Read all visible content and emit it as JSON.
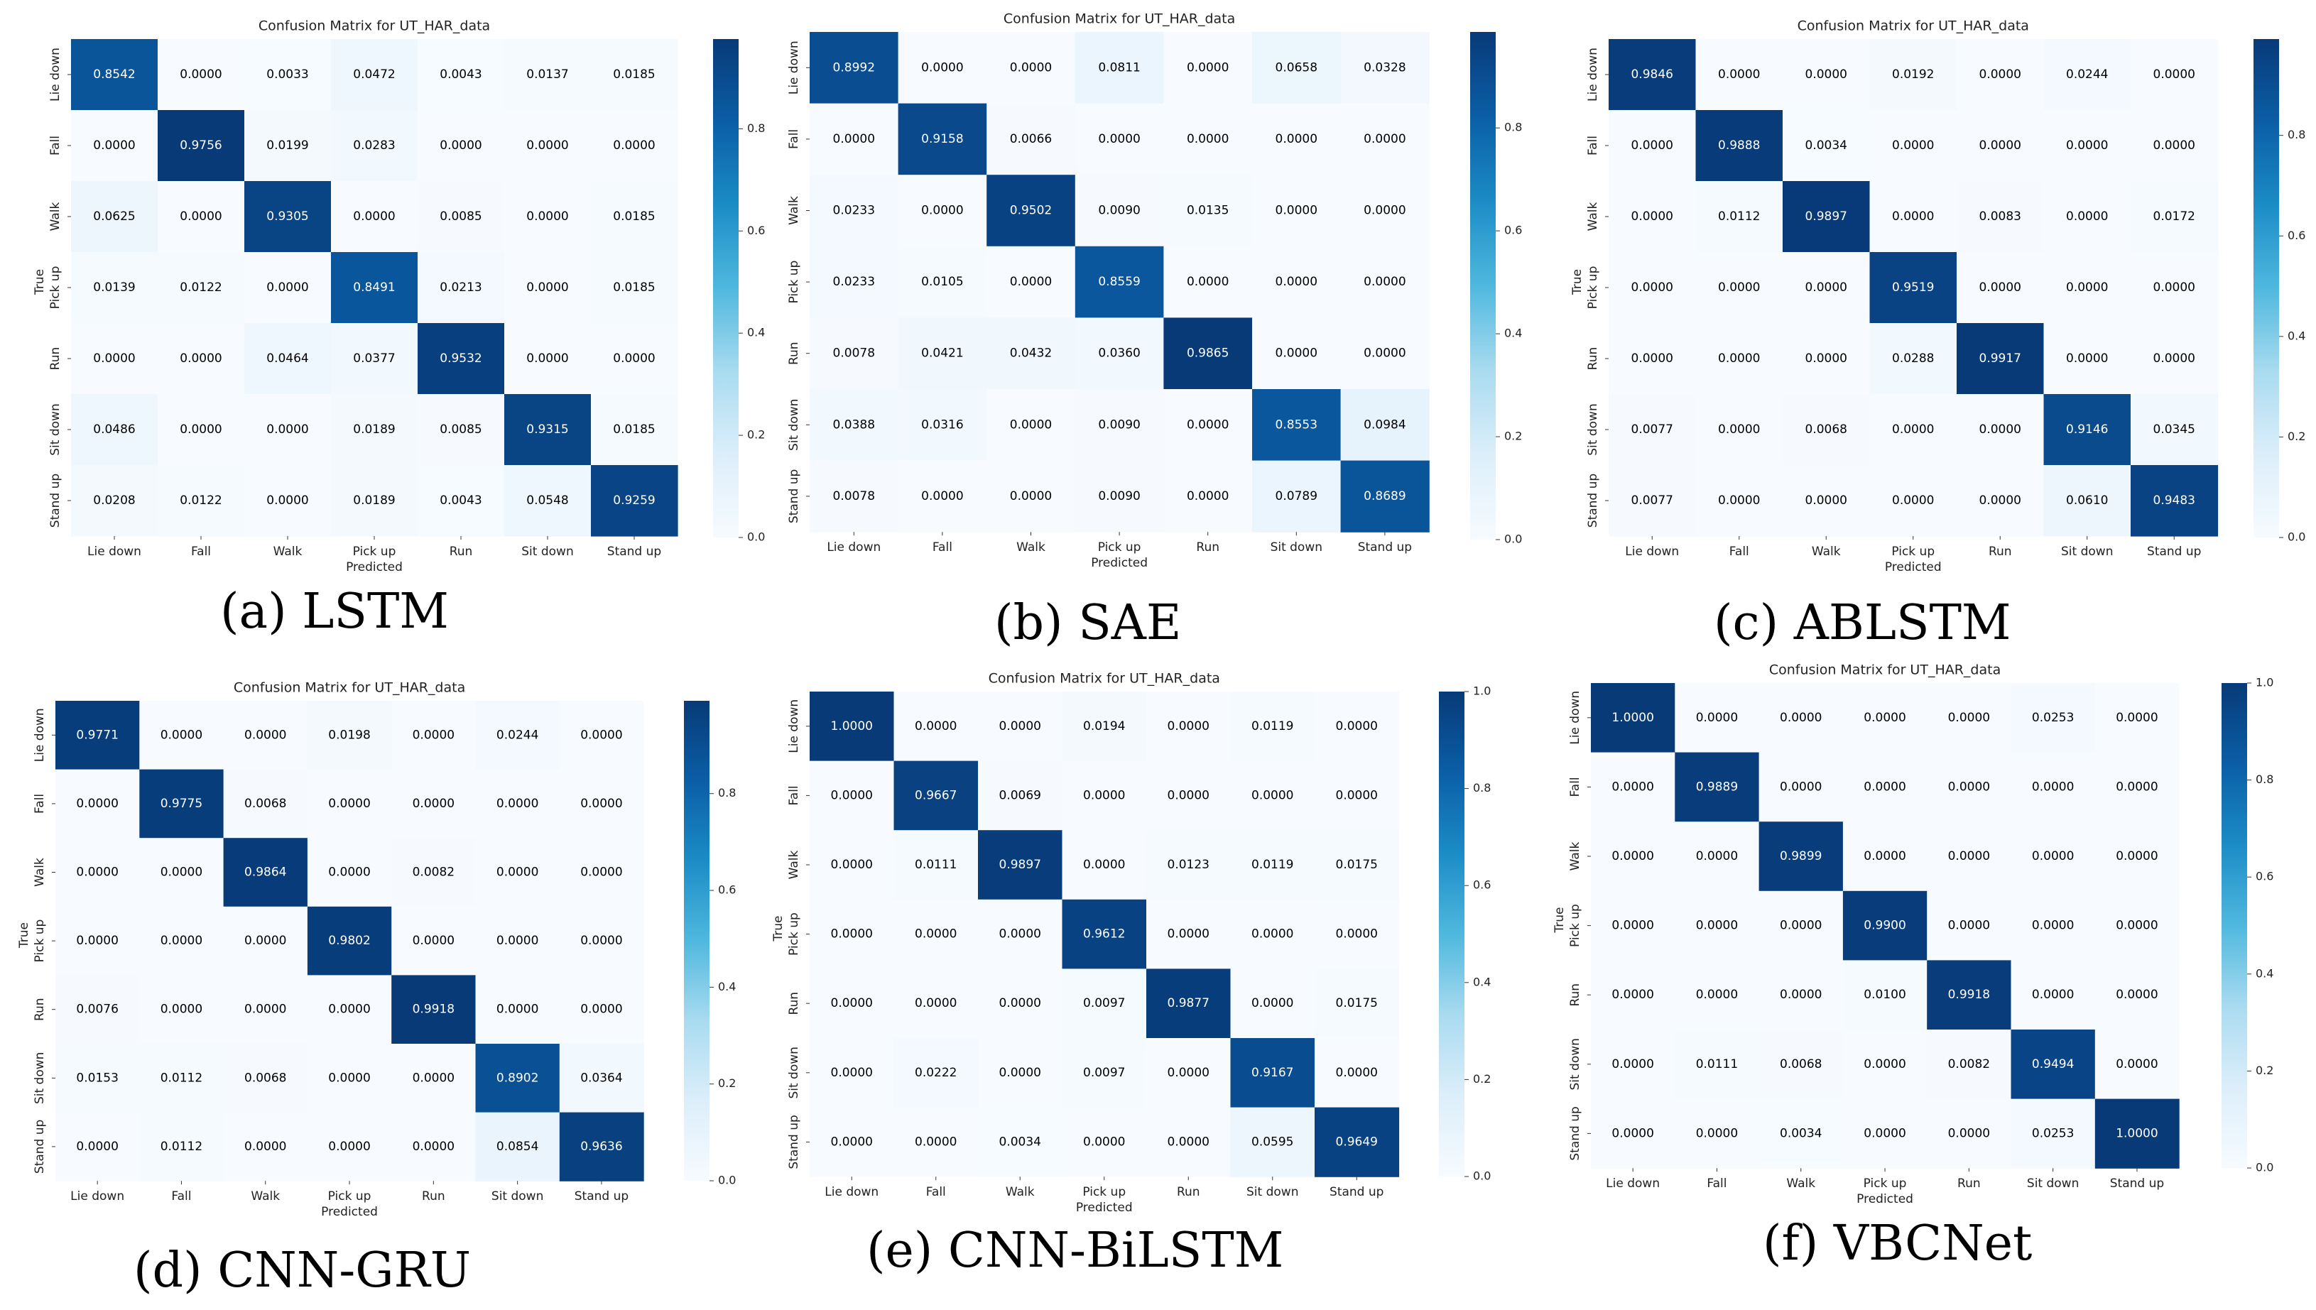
{
  "figure": {
    "panels": [
      {
        "caption": "(a) LSTM"
      },
      {
        "caption": "(b) SAE"
      },
      {
        "caption": "(c) ABLSTM"
      },
      {
        "caption": "(d) CNN-GRU"
      },
      {
        "caption": "(e) CNN-BiLSTM"
      },
      {
        "caption": "(f) VBCNet"
      }
    ]
  },
  "colormap": {
    "low": "#f7fbff",
    "stops": [
      "#f7fbff",
      "#dceefa",
      "#a9dbf0",
      "#4fb8de",
      "#1b8cc6",
      "#0b5ea6",
      "#083a78"
    ],
    "text_dark": "#000000",
    "text_light": "#ffffff"
  },
  "chart_data": [
    {
      "type": "heatmap",
      "title": "Confusion Matrix for UT_HAR_data",
      "xlabel": "Predicted",
      "ylabel": "True",
      "x_categories": [
        "Lie down",
        "Fall",
        "Walk",
        "Pick up",
        "Run",
        "Sit down",
        "Stand up"
      ],
      "y_categories": [
        "Lie down",
        "Fall",
        "Walk",
        "Pick up",
        "Run",
        "Sit down",
        "Stand up"
      ],
      "colorbar_ticks": [
        "0.0",
        "0.2",
        "0.4",
        "0.6",
        "0.8"
      ],
      "vmax": 0.9756,
      "values": [
        [
          "0.8542",
          "0.0000",
          "0.0033",
          "0.0472",
          "0.0043",
          "0.0137",
          "0.0185"
        ],
        [
          "0.0000",
          "0.9756",
          "0.0199",
          "0.0283",
          "0.0000",
          "0.0000",
          "0.0000"
        ],
        [
          "0.0625",
          "0.0000",
          "0.9305",
          "0.0000",
          "0.0085",
          "0.0000",
          "0.0185"
        ],
        [
          "0.0139",
          "0.0122",
          "0.0000",
          "0.8491",
          "0.0213",
          "0.0000",
          "0.0185"
        ],
        [
          "0.0000",
          "0.0000",
          "0.0464",
          "0.0377",
          "0.9532",
          "0.0000",
          "0.0000"
        ],
        [
          "0.0486",
          "0.0000",
          "0.0000",
          "0.0189",
          "0.0085",
          "0.9315",
          "0.0185"
        ],
        [
          "0.0208",
          "0.0122",
          "0.0000",
          "0.0189",
          "0.0043",
          "0.0548",
          "0.9259"
        ]
      ]
    },
    {
      "type": "heatmap",
      "title": "Confusion Matrix for UT_HAR_data",
      "xlabel": "Predicted",
      "ylabel": "",
      "x_categories": [
        "Lie down",
        "Fall",
        "Walk",
        "Pick up",
        "Run",
        "Sit down",
        "Stand up"
      ],
      "y_categories": [
        "Lie down",
        "Fall",
        "Walk",
        "Pick up",
        "Run",
        "Sit down",
        "Stand up"
      ],
      "colorbar_ticks": [
        "0.0",
        "0.2",
        "0.4",
        "0.6",
        "0.8"
      ],
      "vmax": 0.9865,
      "values": [
        [
          "0.8992",
          "0.0000",
          "0.0000",
          "0.0811",
          "0.0000",
          "0.0658",
          "0.0328"
        ],
        [
          "0.0000",
          "0.9158",
          "0.0066",
          "0.0000",
          "0.0000",
          "0.0000",
          "0.0000"
        ],
        [
          "0.0233",
          "0.0000",
          "0.9502",
          "0.0090",
          "0.0135",
          "0.0000",
          "0.0000"
        ],
        [
          "0.0233",
          "0.0105",
          "0.0000",
          "0.8559",
          "0.0000",
          "0.0000",
          "0.0000"
        ],
        [
          "0.0078",
          "0.0421",
          "0.0432",
          "0.0360",
          "0.9865",
          "0.0000",
          "0.0000"
        ],
        [
          "0.0388",
          "0.0316",
          "0.0000",
          "0.0090",
          "0.0000",
          "0.8553",
          "0.0984"
        ],
        [
          "0.0078",
          "0.0000",
          "0.0000",
          "0.0090",
          "0.0000",
          "0.0789",
          "0.8689"
        ]
      ]
    },
    {
      "type": "heatmap",
      "title": "Confusion Matrix for UT_HAR_data",
      "xlabel": "Predicted",
      "ylabel": "True",
      "x_categories": [
        "Lie down",
        "Fall",
        "Walk",
        "Pick up",
        "Run",
        "Sit down",
        "Stand up"
      ],
      "y_categories": [
        "Lie down",
        "Fall",
        "Walk",
        "Pick up",
        "Run",
        "Sit down",
        "Stand up"
      ],
      "colorbar_ticks": [
        "0.0",
        "0.2",
        "0.4",
        "0.6",
        "0.8"
      ],
      "vmax": 0.9917,
      "values": [
        [
          "0.9846",
          "0.0000",
          "0.0000",
          "0.0192",
          "0.0000",
          "0.0244",
          "0.0000"
        ],
        [
          "0.0000",
          "0.9888",
          "0.0034",
          "0.0000",
          "0.0000",
          "0.0000",
          "0.0000"
        ],
        [
          "0.0000",
          "0.0112",
          "0.9897",
          "0.0000",
          "0.0083",
          "0.0000",
          "0.0172"
        ],
        [
          "0.0000",
          "0.0000",
          "0.0000",
          "0.9519",
          "0.0000",
          "0.0000",
          "0.0000"
        ],
        [
          "0.0000",
          "0.0000",
          "0.0000",
          "0.0288",
          "0.9917",
          "0.0000",
          "0.0000"
        ],
        [
          "0.0077",
          "0.0000",
          "0.0068",
          "0.0000",
          "0.0000",
          "0.9146",
          "0.0345"
        ],
        [
          "0.0077",
          "0.0000",
          "0.0000",
          "0.0000",
          "0.0000",
          "0.0610",
          "0.9483"
        ]
      ]
    },
    {
      "type": "heatmap",
      "title": "Confusion Matrix for UT_HAR_data",
      "xlabel": "Predicted",
      "ylabel": "True",
      "x_categories": [
        "Lie down",
        "Fall",
        "Walk",
        "Pick up",
        "Run",
        "Sit down",
        "Stand up"
      ],
      "y_categories": [
        "Lie down",
        "Fall",
        "Walk",
        "Pick up",
        "Run",
        "Sit down",
        "Stand up"
      ],
      "colorbar_ticks": [
        "0.0",
        "0.2",
        "0.4",
        "0.6",
        "0.8"
      ],
      "vmax": 0.9918,
      "values": [
        [
          "0.9771",
          "0.0000",
          "0.0000",
          "0.0198",
          "0.0000",
          "0.0244",
          "0.0000"
        ],
        [
          "0.0000",
          "0.9775",
          "0.0068",
          "0.0000",
          "0.0000",
          "0.0000",
          "0.0000"
        ],
        [
          "0.0000",
          "0.0000",
          "0.9864",
          "0.0000",
          "0.0082",
          "0.0000",
          "0.0000"
        ],
        [
          "0.0000",
          "0.0000",
          "0.0000",
          "0.9802",
          "0.0000",
          "0.0000",
          "0.0000"
        ],
        [
          "0.0076",
          "0.0000",
          "0.0000",
          "0.0000",
          "0.9918",
          "0.0000",
          "0.0000"
        ],
        [
          "0.0153",
          "0.0112",
          "0.0068",
          "0.0000",
          "0.0000",
          "0.8902",
          "0.0364"
        ],
        [
          "0.0000",
          "0.0112",
          "0.0000",
          "0.0000",
          "0.0000",
          "0.0854",
          "0.9636"
        ]
      ]
    },
    {
      "type": "heatmap",
      "title": "Confusion Matrix for UT_HAR_data",
      "xlabel": "Predicted",
      "ylabel": "True",
      "x_categories": [
        "Lie down",
        "Fall",
        "Walk",
        "Pick up",
        "Run",
        "Sit down",
        "Stand up"
      ],
      "y_categories": [
        "Lie down",
        "Fall",
        "Walk",
        "Pick up",
        "Run",
        "Sit down",
        "Stand up"
      ],
      "colorbar_ticks": [
        "0.0",
        "0.2",
        "0.4",
        "0.6",
        "0.8",
        "1.0"
      ],
      "vmax": 1.0,
      "values": [
        [
          "1.0000",
          "0.0000",
          "0.0000",
          "0.0194",
          "0.0000",
          "0.0119",
          "0.0000"
        ],
        [
          "0.0000",
          "0.9667",
          "0.0069",
          "0.0000",
          "0.0000",
          "0.0000",
          "0.0000"
        ],
        [
          "0.0000",
          "0.0111",
          "0.9897",
          "0.0000",
          "0.0123",
          "0.0119",
          "0.0175"
        ],
        [
          "0.0000",
          "0.0000",
          "0.0000",
          "0.9612",
          "0.0000",
          "0.0000",
          "0.0000"
        ],
        [
          "0.0000",
          "0.0000",
          "0.0000",
          "0.0097",
          "0.9877",
          "0.0000",
          "0.0175"
        ],
        [
          "0.0000",
          "0.0222",
          "0.0000",
          "0.0097",
          "0.0000",
          "0.9167",
          "0.0000"
        ],
        [
          "0.0000",
          "0.0000",
          "0.0034",
          "0.0000",
          "0.0000",
          "0.0595",
          "0.9649"
        ]
      ]
    },
    {
      "type": "heatmap",
      "title": "Confusion Matrix for UT_HAR_data",
      "xlabel": "Predicted",
      "ylabel": "True",
      "x_categories": [
        "Lie down",
        "Fall",
        "Walk",
        "Pick up",
        "Run",
        "Sit down",
        "Stand up"
      ],
      "y_categories": [
        "Lie down",
        "Fall",
        "Walk",
        "Pick up",
        "Run",
        "Sit down",
        "Stand up"
      ],
      "colorbar_ticks": [
        "0.0",
        "0.2",
        "0.4",
        "0.6",
        "0.8",
        "1.0"
      ],
      "vmax": 1.0,
      "values": [
        [
          "1.0000",
          "0.0000",
          "0.0000",
          "0.0000",
          "0.0000",
          "0.0253",
          "0.0000"
        ],
        [
          "0.0000",
          "0.9889",
          "0.0000",
          "0.0000",
          "0.0000",
          "0.0000",
          "0.0000"
        ],
        [
          "0.0000",
          "0.0000",
          "0.9899",
          "0.0000",
          "0.0000",
          "0.0000",
          "0.0000"
        ],
        [
          "0.0000",
          "0.0000",
          "0.0000",
          "0.9900",
          "0.0000",
          "0.0000",
          "0.0000"
        ],
        [
          "0.0000",
          "0.0000",
          "0.0000",
          "0.0100",
          "0.9918",
          "0.0000",
          "0.0000"
        ],
        [
          "0.0000",
          "0.0111",
          "0.0068",
          "0.0000",
          "0.0082",
          "0.9494",
          "0.0000"
        ],
        [
          "0.0000",
          "0.0000",
          "0.0034",
          "0.0000",
          "0.0000",
          "0.0253",
          "1.0000"
        ]
      ]
    }
  ]
}
